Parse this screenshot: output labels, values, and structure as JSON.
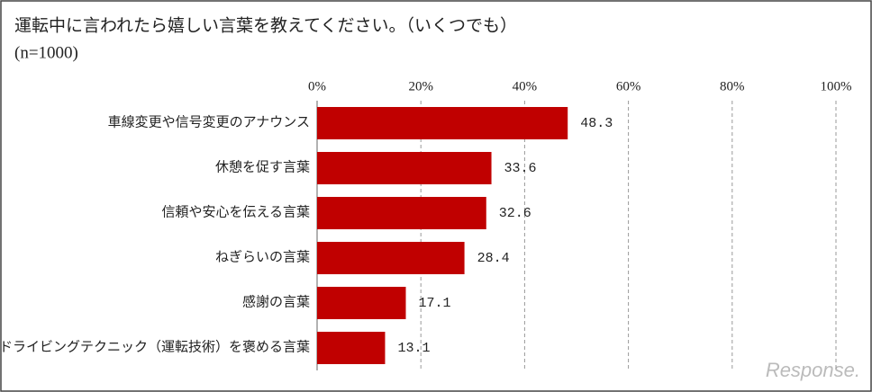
{
  "chart_data": {
    "type": "bar",
    "orientation": "horizontal",
    "title": "運転中に言われたら嬉しい言葉を教えてください。（いくつでも）",
    "subtitle": "(n=1000)",
    "categories": [
      "車線変更や信号変更のアナウンス",
      "休憩を促す言葉",
      "信頼や安心を伝える言葉",
      "ねぎらいの言葉",
      "感謝の言葉",
      "ドライビングテクニック（運転技術）を褒める言葉"
    ],
    "values": [
      48.3,
      33.6,
      32.6,
      28.4,
      17.1,
      13.1
    ],
    "color": "#c00000",
    "xlim": [
      0,
      100
    ],
    "xticks": [
      {
        "value": 0,
        "label": "0%"
      },
      {
        "value": 20,
        "label": "20%"
      },
      {
        "value": 40,
        "label": "40%"
      },
      {
        "value": 60,
        "label": "60%"
      },
      {
        "value": 80,
        "label": "80%"
      },
      {
        "value": 100,
        "label": "100%"
      }
    ],
    "grid": true,
    "watermark": "Response."
  }
}
